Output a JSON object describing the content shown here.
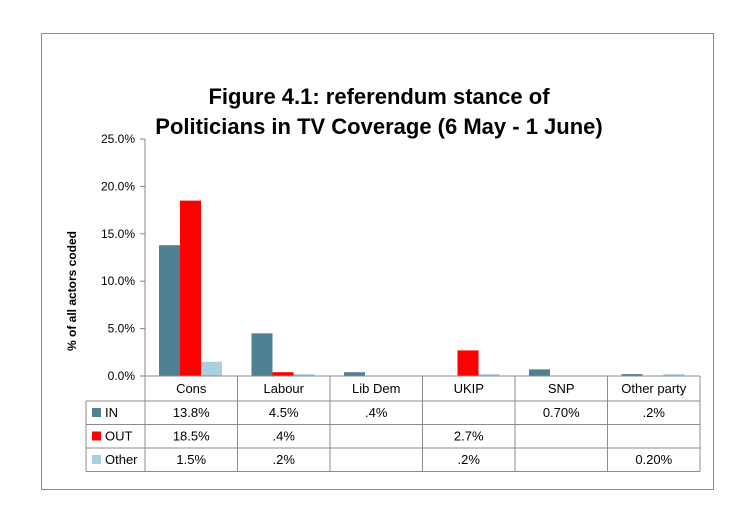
{
  "chart_data": {
    "type": "bar",
    "title_lines": [
      "Figure 4.1: referendum stance of",
      "Politicians in TV Coverage (6 May - 1 June)"
    ],
    "ylabel": "% of all actors coded",
    "xlabel": "",
    "ylim": [
      0,
      25
    ],
    "y_ticks": [
      0,
      5,
      10,
      15,
      20,
      25
    ],
    "y_tick_labels": [
      "0.0%",
      "5.0%",
      "10.0%",
      "15.0%",
      "20.0%",
      "25.0%"
    ],
    "categories": [
      "Cons",
      "Labour",
      "Lib Dem",
      "UKIP",
      "SNP",
      "Other party"
    ],
    "series": [
      {
        "name": "IN",
        "color": "#4f8193",
        "values": [
          13.8,
          4.5,
          0.4,
          0,
          0.7,
          0.2
        ]
      },
      {
        "name": "OUT",
        "color": "#ff0000",
        "values": [
          18.5,
          0.4,
          0,
          2.7,
          0,
          0
        ]
      },
      {
        "name": "Other",
        "color": "#a9cfe3",
        "values": [
          1.5,
          0.2,
          0,
          0.2,
          0,
          0.2
        ]
      }
    ],
    "table_labels": [
      [
        "13.8%",
        "4.5%",
        ".4%",
        "",
        "0.70%",
        ".2%"
      ],
      [
        "18.5%",
        ".4%",
        "",
        "2.7%",
        "",
        ""
      ],
      [
        "1.5%",
        ".2%",
        "",
        ".2%",
        "",
        "0.20%"
      ]
    ],
    "legend": "data-table"
  }
}
